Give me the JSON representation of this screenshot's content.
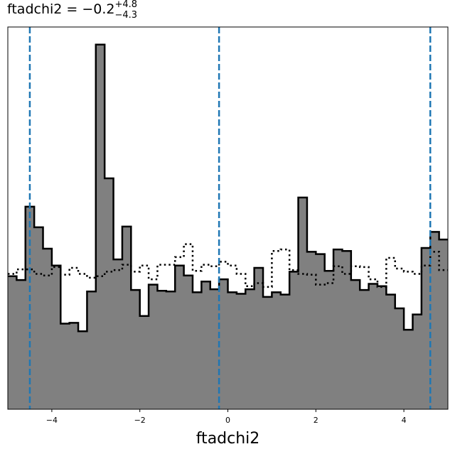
{
  "title": {
    "name": "ftadchi2",
    "equals": " = ",
    "value": "−0.2",
    "err_plus": "+4.8",
    "err_minus": "−4.3"
  },
  "chart_data": {
    "type": "histogram",
    "xlabel": "ftadchi2",
    "xlim": [
      -5,
      5
    ],
    "ylim": [
      0,
      1
    ],
    "xticks": [
      -4,
      -2,
      0,
      2,
      4
    ],
    "xtick_labels": [
      "−4",
      "−2",
      "0",
      "2",
      "4"
    ],
    "bin_edges": [
      -5.0,
      -4.8,
      -4.6,
      -4.4,
      -4.2,
      -4.0,
      -3.8,
      -3.6,
      -3.4,
      -3.2,
      -3.0,
      -2.8,
      -2.6,
      -2.4,
      -2.2,
      -2.0,
      -1.8,
      -1.6,
      -1.4,
      -1.2,
      -1.0,
      -0.8,
      -0.6,
      -0.4,
      -0.2,
      0.0,
      0.2,
      0.4,
      0.6,
      0.8,
      1.0,
      1.2,
      1.4,
      1.6,
      1.8,
      2.0,
      2.2,
      2.4,
      2.6,
      2.8,
      3.0,
      3.2,
      3.4,
      3.6,
      3.8,
      4.0,
      4.2,
      4.4,
      4.6,
      4.8,
      5.0
    ],
    "series": [
      {
        "style": "filled",
        "fill": "#808080",
        "edge": "#000000",
        "values": [
          0.348,
          0.338,
          0.53,
          0.476,
          0.42,
          0.376,
          0.224,
          0.226,
          0.204,
          0.308,
          0.954,
          0.604,
          0.392,
          0.478,
          0.312,
          0.244,
          0.326,
          0.31,
          0.308,
          0.376,
          0.35,
          0.306,
          0.334,
          0.314,
          0.34,
          0.306,
          0.302,
          0.314,
          0.37,
          0.294,
          0.306,
          0.3,
          0.36,
          0.554,
          0.412,
          0.406,
          0.362,
          0.418,
          0.414,
          0.338,
          0.312,
          0.328,
          0.322,
          0.3,
          0.264,
          0.208,
          0.248,
          0.422,
          0.464,
          0.444
        ]
      },
      {
        "style": "dotted",
        "edge": "#000000",
        "values": [
          0.354,
          0.366,
          0.366,
          0.354,
          0.35,
          0.372,
          0.352,
          0.37,
          0.354,
          0.344,
          0.348,
          0.36,
          0.364,
          0.378,
          0.36,
          0.376,
          0.34,
          0.378,
          0.378,
          0.398,
          0.432,
          0.362,
          0.378,
          0.374,
          0.386,
          0.376,
          0.354,
          0.322,
          0.33,
          0.32,
          0.414,
          0.418,
          0.364,
          0.354,
          0.352,
          0.326,
          0.33,
          0.374,
          0.354,
          0.374,
          0.372,
          0.34,
          0.32,
          0.396,
          0.368,
          0.36,
          0.354,
          0.376,
          0.412,
          0.364
        ]
      }
    ],
    "vlines": [
      -4.5,
      -0.2,
      4.6
    ],
    "vline_color": "#1f77b4"
  }
}
